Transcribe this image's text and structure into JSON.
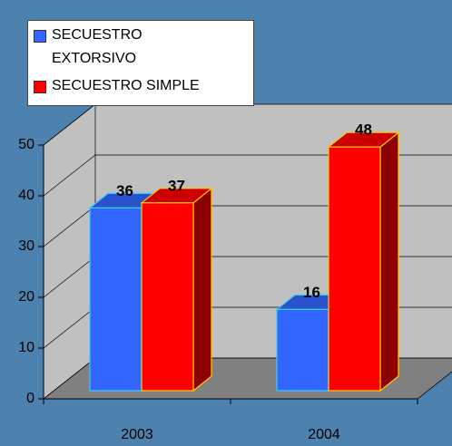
{
  "chart_data": {
    "type": "bar3d",
    "categories": [
      "2003",
      "2004"
    ],
    "series": [
      {
        "name": "SECUESTRO EXTORSIVO",
        "color": "#3366ff",
        "values": [
          36,
          16
        ]
      },
      {
        "name": "SECUESTRO SIMPLE",
        "color": "#ff0000",
        "values": [
          37,
          48
        ]
      }
    ],
    "ylim": [
      0,
      50
    ],
    "yticks": [
      0,
      10,
      20,
      30,
      40,
      50
    ],
    "grid": true,
    "legend": "top-left"
  }
}
